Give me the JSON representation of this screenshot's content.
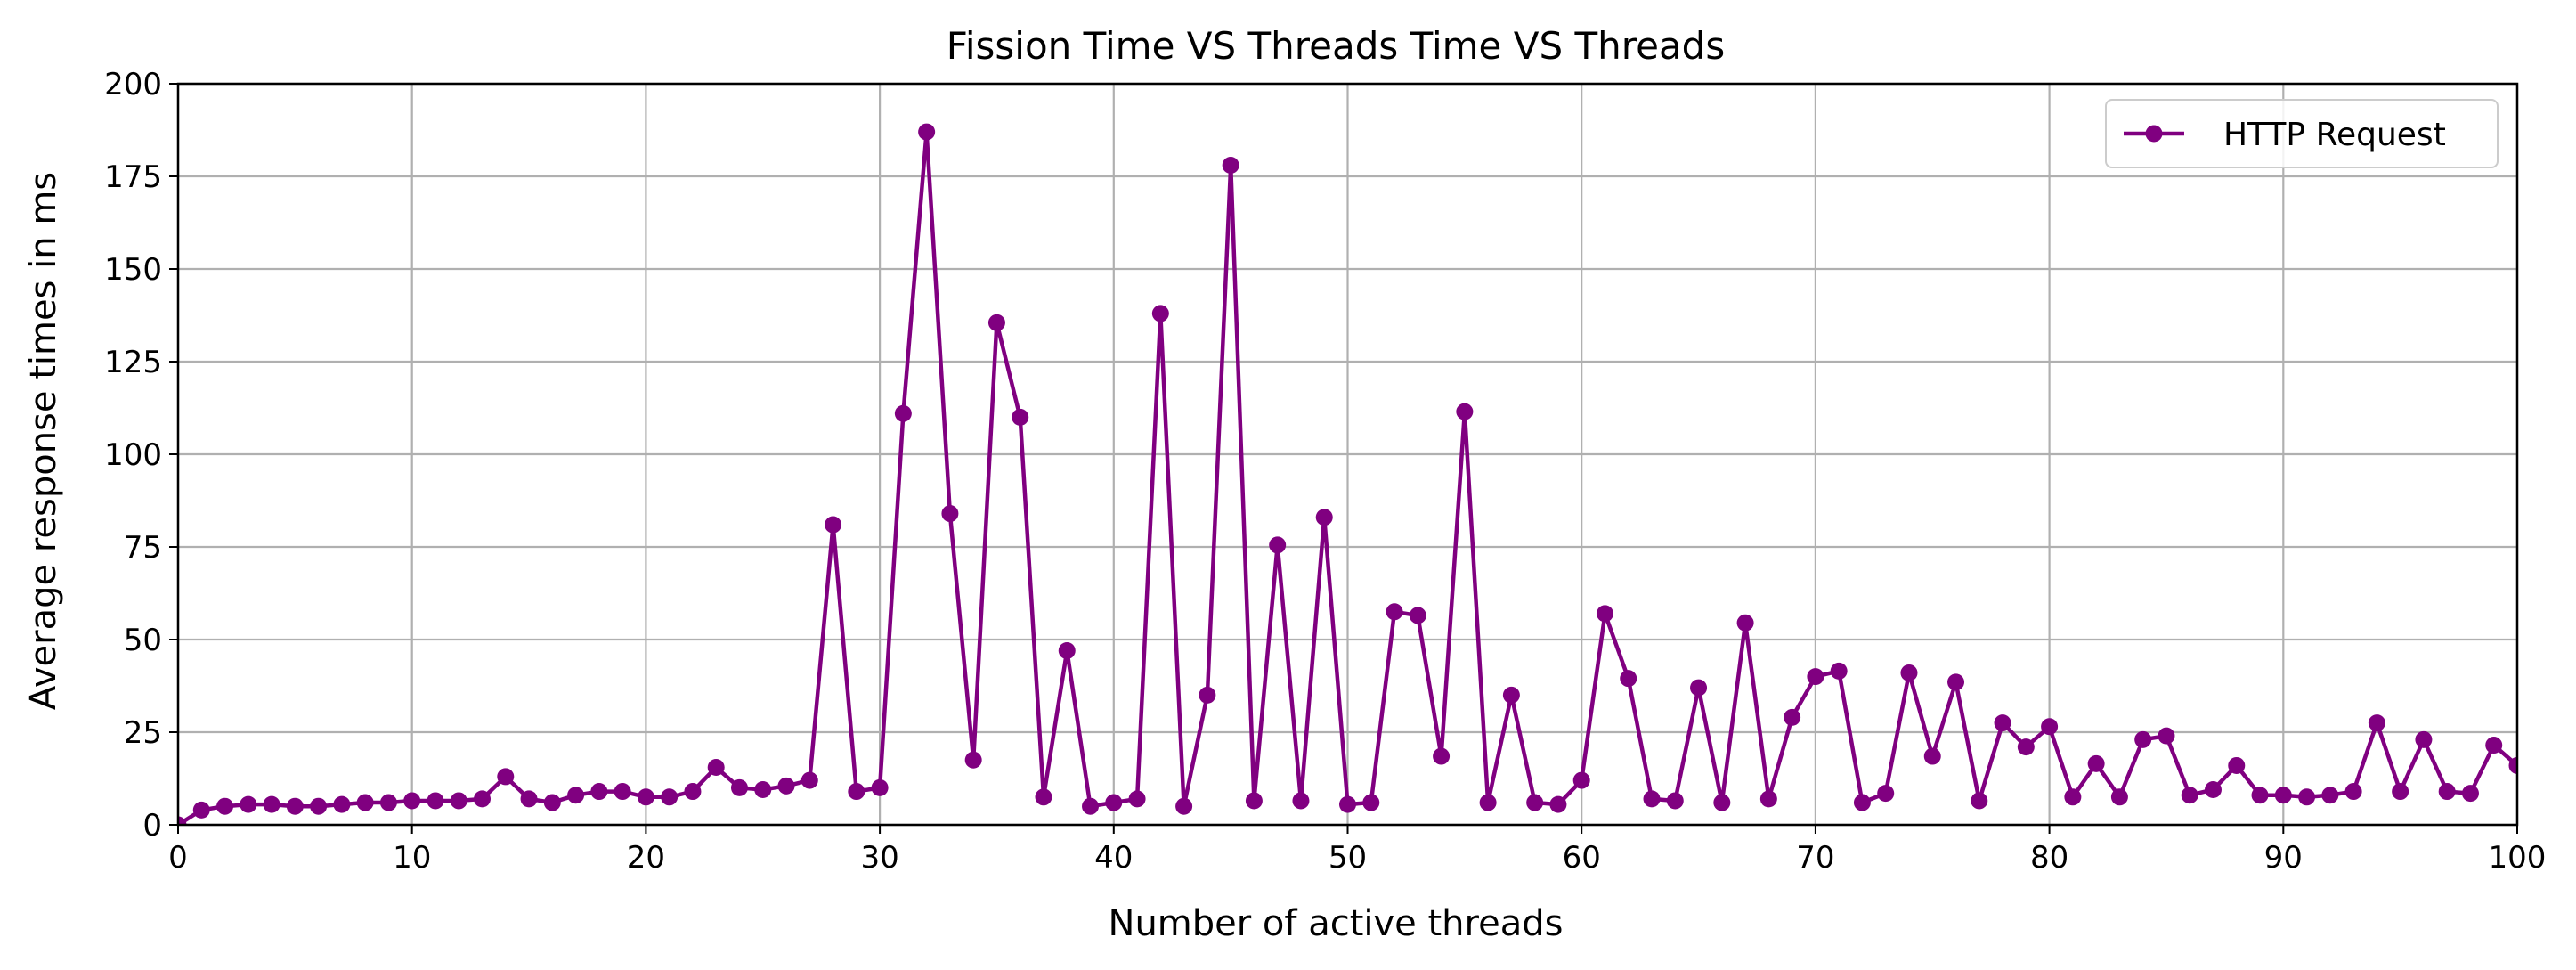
{
  "chart_data": {
    "type": "line",
    "title": "Fission Time VS Threads Time VS Threads",
    "xlabel": "Number of active threads",
    "ylabel": "Average response times in ms",
    "xlim": [
      0,
      100
    ],
    "ylim": [
      0,
      200
    ],
    "xticks": [
      0,
      10,
      20,
      30,
      40,
      50,
      60,
      70,
      80,
      90,
      100
    ],
    "yticks": [
      0,
      25,
      50,
      75,
      100,
      125,
      150,
      175,
      200
    ],
    "grid": true,
    "legend_position": "top-right",
    "series": [
      {
        "name": "HTTP Request",
        "color": "#800080",
        "marker": "circle",
        "x": [
          0,
          1,
          2,
          3,
          4,
          5,
          6,
          7,
          8,
          9,
          10,
          11,
          12,
          13,
          14,
          15,
          16,
          17,
          18,
          19,
          20,
          21,
          22,
          23,
          24,
          25,
          26,
          27,
          28,
          29,
          30,
          31,
          32,
          33,
          34,
          35,
          36,
          37,
          38,
          39,
          40,
          41,
          42,
          43,
          44,
          45,
          46,
          47,
          48,
          49,
          50,
          51,
          52,
          53,
          54,
          55,
          56,
          57,
          58,
          59,
          60,
          61,
          62,
          63,
          64,
          65,
          66,
          67,
          68,
          69,
          70,
          71,
          72,
          73,
          74,
          75,
          76,
          77,
          78,
          79,
          80,
          81,
          82,
          83,
          84,
          85,
          86,
          87,
          88,
          89,
          90,
          91,
          92,
          93,
          94,
          95,
          96,
          97,
          98,
          99,
          100
        ],
        "y": [
          0,
          4,
          5,
          5.5,
          5.5,
          5,
          5,
          5.5,
          6,
          6,
          6.5,
          6.5,
          6.5,
          7,
          13,
          7,
          6,
          8,
          9,
          9,
          7.5,
          7.5,
          9,
          15.5,
          10,
          9.5,
          10.5,
          12,
          81,
          9,
          10,
          111,
          187,
          84,
          17.5,
          135.5,
          110,
          7.5,
          47,
          5,
          6,
          7,
          138,
          5,
          35,
          178,
          6.5,
          75.5,
          6.5,
          83,
          5.5,
          6,
          57.5,
          56.5,
          18.5,
          111.5,
          6,
          35,
          6,
          5.5,
          12,
          57,
          39.5,
          7,
          6.5,
          37,
          6,
          54.5,
          7,
          29,
          40,
          41.5,
          6,
          8.5,
          41,
          18.5,
          38.5,
          6.5,
          27.5,
          21,
          26.5,
          7.5,
          16.5,
          7.5,
          23,
          24,
          8,
          9.5,
          16,
          8,
          8,
          7.5,
          8,
          9,
          27.5,
          9,
          23,
          9,
          8.5,
          21.5,
          16
        ]
      }
    ]
  }
}
